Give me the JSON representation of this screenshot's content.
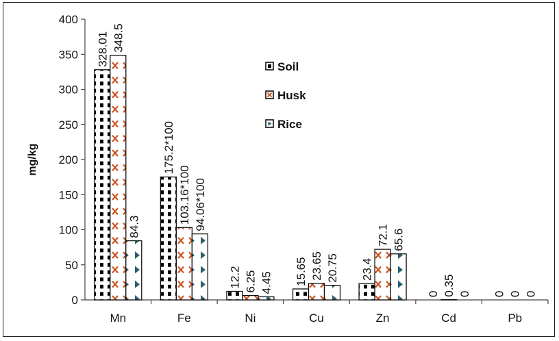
{
  "chart_data": {
    "type": "bar",
    "title": "",
    "xlabel": "",
    "ylabel": "mg/kg",
    "ylim": [
      0,
      400
    ],
    "yticks": [
      0,
      50,
      100,
      150,
      200,
      250,
      300,
      350,
      400
    ],
    "grid": false,
    "legend_position": "top-center",
    "categories": [
      "Mn",
      "Fe",
      "Ni",
      "Cu",
      "Zn",
      "Cd",
      "Pb"
    ],
    "series": [
      {
        "name": "Soil",
        "pattern": "squares",
        "values": [
          328.01,
          175.2,
          12.2,
          15.65,
          23.4,
          0,
          0
        ],
        "labels": [
          "328.01",
          "175.2*100",
          "12.2",
          "15.65",
          "23.4",
          "0",
          "0"
        ]
      },
      {
        "name": "Husk",
        "pattern": "crosses",
        "color": "#c8501e",
        "values": [
          348.5,
          103.16,
          6.25,
          23.65,
          72.1,
          0.35,
          0
        ],
        "labels": [
          "348.5",
          "103.16*100",
          "6.25",
          "23.65",
          "72.1",
          "0.35",
          "0"
        ]
      },
      {
        "name": "Rice",
        "pattern": "triangles",
        "color": "#2b5f6f",
        "values": [
          84.3,
          94.06,
          4.45,
          20.75,
          65.6,
          0,
          0
        ],
        "labels": [
          "84.3",
          "94.06*100",
          "4.45",
          "20.75",
          "65.6",
          "0",
          "0"
        ]
      }
    ]
  }
}
